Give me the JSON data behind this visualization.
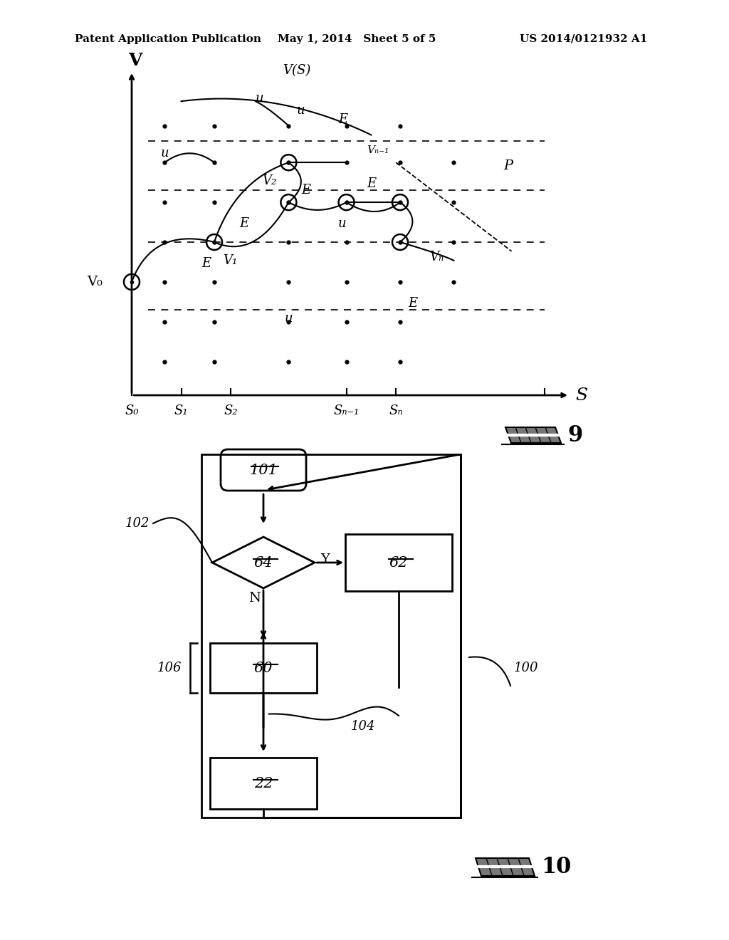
{
  "header_left": "Patent Application Publication",
  "header_mid": "May 1, 2014   Sheet 5 of 5",
  "header_right": "US 2014/0121932 A1",
  "fig9_label": "9",
  "fig10_label": "10",
  "bg_color": "#ffffff",
  "text_color": "#000000"
}
